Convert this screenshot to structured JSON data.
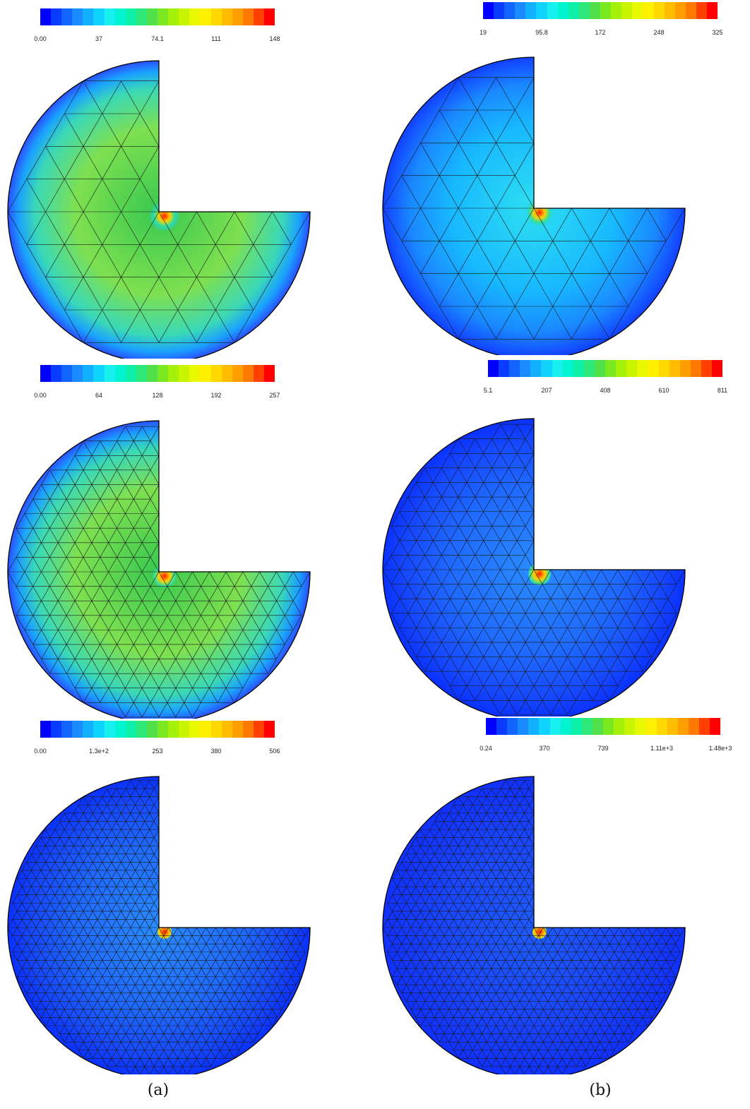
{
  "colormap": [
    "#0000ff",
    "#0a3cff",
    "#1266ff",
    "#1a8cff",
    "#12b0ff",
    "#10d4ff",
    "#18f0f0",
    "#00f4d0",
    "#0ef0a8",
    "#2ee87a",
    "#52e04a",
    "#7ae81e",
    "#a4f00a",
    "#c8f400",
    "#e8f800",
    "#fff000",
    "#ffd800",
    "#ffbc00",
    "#ff9e00",
    "#ff7800",
    "#ff4000",
    "#ff0000"
  ],
  "panels": [
    {
      "id": "a1",
      "ticks": [
        "0.00",
        "37",
        "74.1",
        "111",
        "148"
      ],
      "mesh_level": 1,
      "field": "green"
    },
    {
      "id": "b1",
      "ticks": [
        "19",
        "95.8",
        "172",
        "248",
        "325"
      ],
      "mesh_level": 1,
      "field": "cyan"
    },
    {
      "id": "a2",
      "ticks": [
        "0.00",
        "64",
        "128",
        "192",
        "257"
      ],
      "mesh_level": 2,
      "field": "green"
    },
    {
      "id": "b2",
      "ticks": [
        "5.1",
        "207",
        "408",
        "610",
        "811"
      ],
      "mesh_level": 2,
      "field": "blue"
    },
    {
      "id": "a3",
      "ticks": [
        "0.00",
        "1.3e+2",
        "253",
        "380",
        "506"
      ],
      "mesh_level": 3,
      "field": "blue"
    },
    {
      "id": "b3",
      "ticks": [
        "0.24",
        "370",
        "739",
        "1.11e+3",
        "1.48e+3"
      ],
      "mesh_level": 3,
      "field": "deepblue"
    }
  ],
  "captions": {
    "left": "(a)",
    "right": "(b)"
  }
}
